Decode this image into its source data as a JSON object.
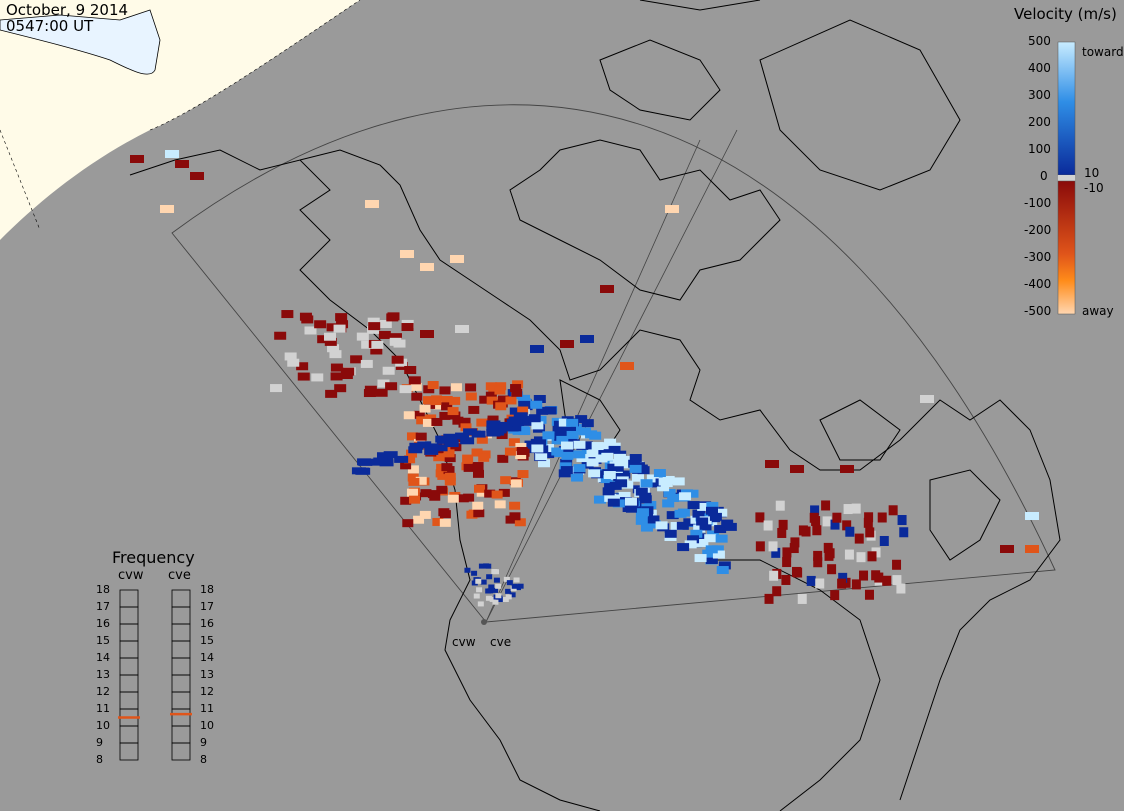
{
  "header": {
    "date": "October, 9 2014",
    "time": "0547:00 UT"
  },
  "colorbar": {
    "title": "Velocity (m/s)",
    "ticks": [
      "500",
      "400",
      "300",
      "200",
      "100",
      "10",
      "0",
      "-10",
      "-100",
      "-200",
      "-300",
      "-400",
      "-500"
    ],
    "toward_label": "toward",
    "away_label": "away",
    "colors": {
      "toward_high": "#c8ecff",
      "toward_mid": "#2f8ee6",
      "toward_low": "#0a2a9a",
      "ground": "#d2d2d2",
      "away_low": "#8a0a0a",
      "away_mid": "#e0551a",
      "away_high": "#ffd6b0"
    }
  },
  "frequency_panel": {
    "title": "Frequency",
    "radars": [
      {
        "name": "cvw",
        "frequency_mhz": 10.5
      },
      {
        "name": "cve",
        "frequency_mhz": 10.7
      }
    ],
    "scale_min": 8,
    "scale_max": 18,
    "scale_labels": [
      "18",
      "17",
      "16",
      "15",
      "14",
      "13",
      "12",
      "11",
      "10",
      "9",
      "8"
    ],
    "marker_color": "#e0551a"
  },
  "map": {
    "radar_site_labels": [
      "cvw",
      "cve"
    ],
    "ocean_color": "#9a9a9a",
    "day_side_color": "#fffbe8",
    "outline_color": "#000000"
  }
}
